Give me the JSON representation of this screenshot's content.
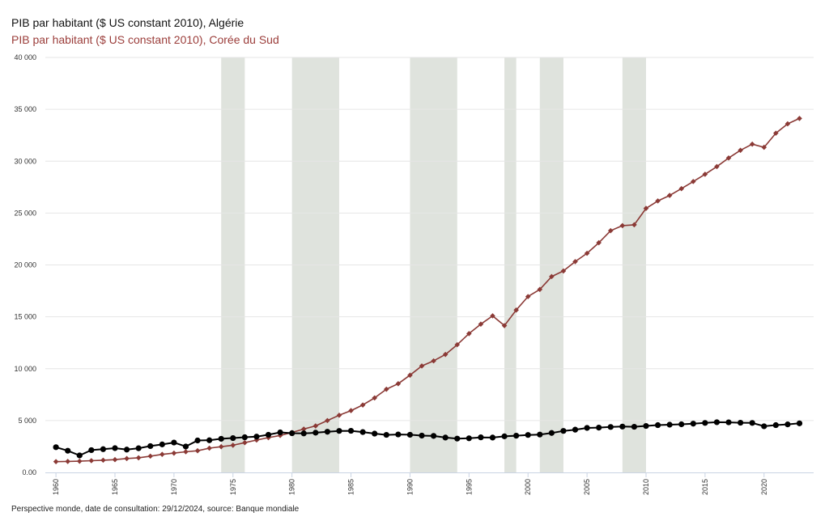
{
  "titles": {
    "series1": "PIB par habitant ($ US constant 2010), Algérie",
    "series2": "PIB par habitant ($ US constant 2010), Corée du Sud"
  },
  "source": "Perspective monde, date de consultation: 29/12/2024, source: Banque mondiale",
  "colors": {
    "algeria": "#000000",
    "korea": "#8b3a36",
    "band": "#dfe3dd",
    "grid": "#e6e6e6",
    "axis": "#c9d3e3"
  },
  "chart_data": {
    "type": "line",
    "title": "PIB par habitant ($ US constant 2010)",
    "xlabel": "",
    "ylabel": "",
    "xlim": [
      1959.1,
      2024.2
    ],
    "ylim": [
      0,
      40000
    ],
    "y_ticks": [
      0,
      5000,
      10000,
      15000,
      20000,
      25000,
      30000,
      35000,
      40000
    ],
    "y_tick_labels": [
      "0.00",
      "5 000",
      "10 000",
      "15 000",
      "20 000",
      "25 000",
      "30 000",
      "35 000",
      "40 000"
    ],
    "x_ticks": [
      1960,
      1965,
      1970,
      1975,
      1980,
      1985,
      1990,
      1995,
      2000,
      2005,
      2010,
      2015,
      2020
    ],
    "x_tick_labels": [
      "1960",
      "1965",
      "1970",
      "1975",
      "1980",
      "1985",
      "1990",
      "1995",
      "2000",
      "2005",
      "2010",
      "2015",
      "2020"
    ],
    "shaded_periods": [
      [
        1974,
        1976
      ],
      [
        1980,
        1984
      ],
      [
        1990,
        1994
      ],
      [
        1998,
        1999
      ],
      [
        2001,
        2003
      ],
      [
        2008,
        2010
      ]
    ],
    "x": [
      1960,
      1961,
      1962,
      1963,
      1964,
      1965,
      1966,
      1967,
      1968,
      1969,
      1970,
      1971,
      1972,
      1973,
      1974,
      1975,
      1976,
      1977,
      1978,
      1979,
      1980,
      1981,
      1982,
      1983,
      1984,
      1985,
      1986,
      1987,
      1988,
      1989,
      1990,
      1991,
      1992,
      1993,
      1994,
      1995,
      1996,
      1997,
      1998,
      1999,
      2000,
      2001,
      2002,
      2003,
      2004,
      2005,
      2006,
      2007,
      2008,
      2009,
      2010,
      2011,
      2012,
      2013,
      2014,
      2015,
      2016,
      2017,
      2018,
      2019,
      2020,
      2021,
      2022,
      2023
    ],
    "series": [
      {
        "name": "Algérie",
        "marker": "circle",
        "values": [
          2430,
          2090,
          1640,
          2150,
          2240,
          2340,
          2200,
          2330,
          2540,
          2700,
          2880,
          2500,
          3080,
          3100,
          3240,
          3310,
          3390,
          3450,
          3630,
          3860,
          3780,
          3760,
          3830,
          3920,
          4000,
          4010,
          3890,
          3740,
          3620,
          3660,
          3630,
          3550,
          3520,
          3360,
          3260,
          3290,
          3380,
          3360,
          3480,
          3540,
          3610,
          3650,
          3800,
          4000,
          4120,
          4290,
          4320,
          4380,
          4420,
          4400,
          4480,
          4560,
          4600,
          4640,
          4700,
          4770,
          4840,
          4830,
          4790,
          4770,
          4450,
          4560,
          4630,
          4730
        ]
      },
      {
        "name": "Corée du Sud",
        "marker": "diamond",
        "values": [
          1040,
          1060,
          1080,
          1130,
          1180,
          1230,
          1340,
          1410,
          1570,
          1740,
          1860,
          1990,
          2090,
          2340,
          2480,
          2620,
          2870,
          3120,
          3350,
          3560,
          3850,
          4180,
          4480,
          5000,
          5510,
          5960,
          6500,
          7180,
          8020,
          8550,
          9370,
          10260,
          10750,
          11370,
          12310,
          13380,
          14290,
          15090,
          14150,
          15650,
          16950,
          17640,
          18880,
          19420,
          20320,
          21120,
          22140,
          23300,
          23790,
          23870,
          25450,
          26170,
          26700,
          27350,
          28040,
          28740,
          29480,
          30310,
          31050,
          31640,
          31340,
          32700,
          33600,
          34120
        ]
      }
    ]
  }
}
